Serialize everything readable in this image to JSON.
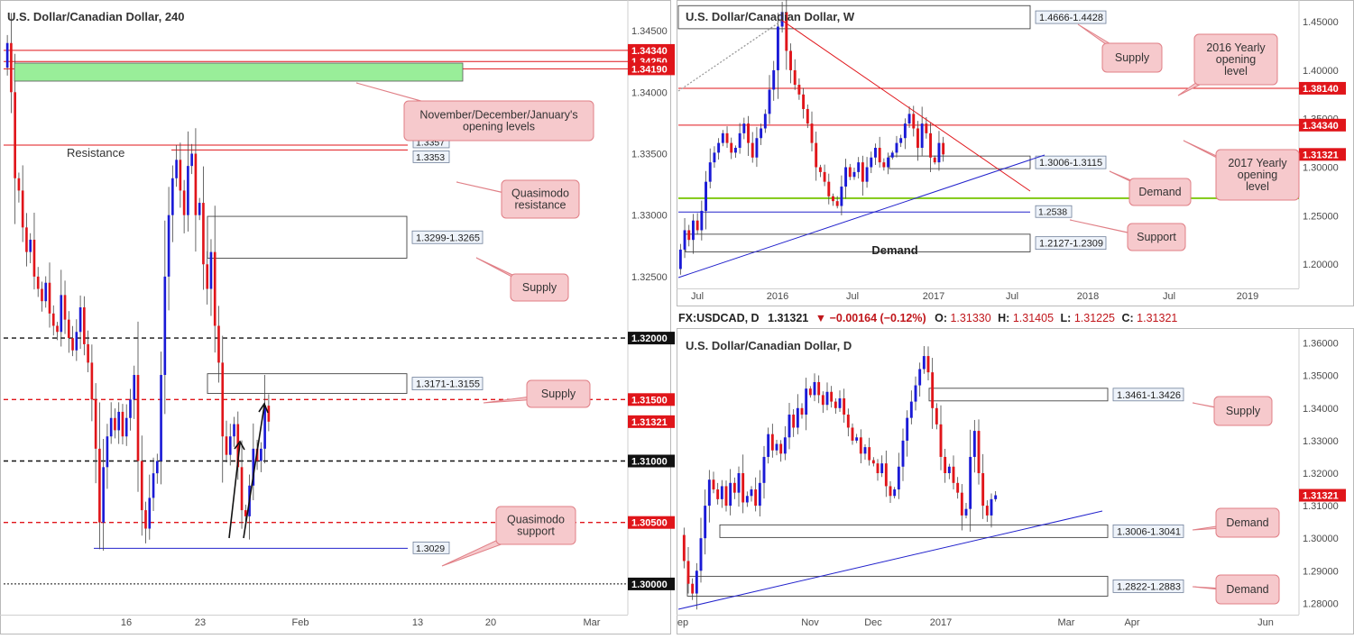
{
  "colors": {
    "up": "#1a1ad6",
    "down": "#e0151a",
    "wick": "#444444",
    "red_level": "#e0151a",
    "black_level": "#111111",
    "blue_level": "#2222cc",
    "green_zone": "#99ee99",
    "green_line": "#88cc22",
    "callout_fill": "#f6c9cc",
    "callout_stroke": "#e07f86",
    "zone_label_fill": "#eef3fa",
    "zone_label_stroke": "#6f7f99",
    "price_tag_dark": "#111111",
    "price_tag_red": "#e0151a",
    "axis_text": "#4a4a4a",
    "frame": "#b9b9b9"
  },
  "chart_data": [
    {
      "id": "h4",
      "type": "candlestick",
      "title": "U.S. Dollar/Canadian Dollar, 240",
      "ylim": [
        1.2975,
        1.3475
      ],
      "x_ticks": [
        "16",
        "23",
        "Feb",
        "13",
        "20",
        "Mar"
      ],
      "y_ticks": [
        "1.34500",
        "1.34000",
        "1.33500",
        "1.33000",
        "1.32500",
        "1.32000",
        "1.31000",
        "1.30500",
        "1.30000"
      ],
      "series": [
        {
          "start": 1.342,
          "values": [
            1.344,
            1.34,
            1.333,
            1.332,
            1.329,
            1.327,
            1.328,
            1.325,
            1.324,
            1.323,
            1.3245,
            1.322,
            1.321,
            1.3205,
            1.3235,
            1.3215,
            1.32,
            1.319,
            1.3205,
            1.3225,
            1.3195,
            1.318,
            1.315,
            1.311,
            1.305,
            1.3095,
            1.312,
            1.3135,
            1.3125,
            1.314,
            1.312,
            1.3135,
            1.315,
            1.317,
            1.31,
            1.306,
            1.3045,
            1.307,
            1.309,
            1.31,
            1.317,
            1.325,
            1.33,
            1.333,
            1.3345,
            1.332,
            1.33,
            1.334,
            1.335,
            1.33,
            1.331,
            1.326,
            1.324,
            1.327,
            1.321,
            1.318,
            1.312,
            1.3105,
            1.312,
            1.313,
            1.3095,
            1.306,
            1.3055,
            1.308,
            1.311,
            1.31,
            1.311,
            1.3145,
            1.3132
          ]
        }
      ],
      "levels": [
        {
          "price": 1.3434,
          "label": "1.34340",
          "color": "red_level",
          "style": "solid"
        },
        {
          "price": 1.3425,
          "label": "1.34250",
          "color": "red_level",
          "style": "solid"
        },
        {
          "price": 1.3419,
          "label": "1.34190",
          "color": "red_level",
          "style": "solid"
        },
        {
          "price": 1.32,
          "label": "1.32000",
          "color": "black_level",
          "style": "dashed"
        },
        {
          "price": 1.315,
          "label": "1.31500",
          "color": "red_level",
          "style": "dashed"
        },
        {
          "price": 1.3132,
          "label": "1.31321",
          "color": "red_level",
          "style": "none"
        },
        {
          "price": 1.31,
          "label": "1.31000",
          "color": "black_level",
          "style": "dashed"
        },
        {
          "price": 1.305,
          "label": "1.30500",
          "color": "red_level",
          "style": "dashed"
        },
        {
          "price": 1.3,
          "label": "1.30000",
          "color": "black_level",
          "style": "dotted"
        }
      ],
      "zones": [
        {
          "label": "1.3299-1.3265",
          "top": 1.3299,
          "bottom": 1.3265
        },
        {
          "label": "1.3171-1.3155",
          "top": 1.3171,
          "bottom": 1.3155
        }
      ],
      "line_labels": [
        {
          "label": "1.3357",
          "price": 1.3357
        },
        {
          "label": "1.3353",
          "price": 1.3353
        },
        {
          "label": "1.3029",
          "price": 1.3029
        }
      ],
      "annotations": [
        "Resistance"
      ],
      "callouts": [
        {
          "text": "November/December/January's opening levels"
        },
        {
          "text": "Quasimodo resistance"
        },
        {
          "text": "Supply"
        },
        {
          "text": "Supply"
        },
        {
          "text": "Quasimodo support"
        }
      ]
    },
    {
      "id": "weekly",
      "type": "candlestick",
      "title": "U.S. Dollar/Canadian Dollar, W",
      "ylim": [
        1.175,
        1.465
      ],
      "x_ticks": [
        "Jul",
        "2016",
        "Jul",
        "2017",
        "Jul",
        "2018",
        "Jul",
        "2019"
      ],
      "y_ticks": [
        "1.45000",
        "1.40000",
        "1.35000",
        "1.30000",
        "1.25000",
        "1.20000"
      ],
      "series": [
        {
          "start": 1.195,
          "values": [
            1.215,
            1.235,
            1.225,
            1.245,
            1.235,
            1.255,
            1.285,
            1.305,
            1.315,
            1.325,
            1.335,
            1.325,
            1.315,
            1.32,
            1.335,
            1.345,
            1.325,
            1.31,
            1.33,
            1.34,
            1.355,
            1.38,
            1.4,
            1.445,
            1.46,
            1.42,
            1.4,
            1.385,
            1.375,
            1.36,
            1.345,
            1.325,
            1.3,
            1.295,
            1.285,
            1.27,
            1.265,
            1.26,
            1.28,
            1.3,
            1.29,
            1.295,
            1.305,
            1.285,
            1.3,
            1.31,
            1.32,
            1.305,
            1.3,
            1.31,
            1.315,
            1.325,
            1.33,
            1.345,
            1.355,
            1.34,
            1.32,
            1.345,
            1.335,
            1.31,
            1.305,
            1.325,
            1.3132
          ]
        }
      ],
      "levels": [
        {
          "price": 1.3814,
          "label": "1.38140",
          "color": "red_level",
          "style": "solid"
        },
        {
          "price": 1.3434,
          "label": "1.34340",
          "color": "red_level",
          "style": "solid"
        },
        {
          "price": 1.3132,
          "label": "1.31321",
          "color": "red_level",
          "style": "none"
        },
        {
          "price": 1.268,
          "label": "",
          "color": "green_line",
          "style": "solid"
        },
        {
          "price": 1.2538,
          "label": "",
          "color": "blue_level",
          "style": "solid"
        }
      ],
      "zones": [
        {
          "label": "1.4666-1.4428",
          "top": 1.4666,
          "bottom": 1.4428
        },
        {
          "label": "1.3006-1.3115",
          "top": 1.3115,
          "bottom": 1.3006
        },
        {
          "label": "1.2127-1.2309",
          "top": 1.2309,
          "bottom": 1.2127
        }
      ],
      "line_labels": [
        {
          "label": "1.2538",
          "price": 1.2538
        }
      ],
      "annotations": [
        "Demand"
      ],
      "callouts": [
        {
          "text": "Supply"
        },
        {
          "text": "2016 Yearly opening level"
        },
        {
          "text": "2017 Yearly opening level"
        },
        {
          "text": "Demand"
        },
        {
          "text": "Support"
        }
      ]
    },
    {
      "id": "daily",
      "type": "candlestick",
      "title": "U.S. Dollar/Canadian Dollar, D",
      "ylim": [
        1.2765,
        1.3635
      ],
      "x_ticks": [
        "ep",
        "Nov",
        "Dec",
        "2017",
        "Mar",
        "Apr",
        "Jun"
      ],
      "y_ticks": [
        "1.36000",
        "1.35000",
        "1.34000",
        "1.33000",
        "1.32000",
        "1.31000",
        "1.30000",
        "1.29000",
        "1.28000"
      ],
      "series": [
        {
          "start": 1.301,
          "values": [
            1.293,
            1.286,
            1.283,
            1.29,
            1.3,
            1.31,
            1.318,
            1.315,
            1.312,
            1.316,
            1.31,
            1.317,
            1.314,
            1.32,
            1.311,
            1.313,
            1.315,
            1.31,
            1.317,
            1.325,
            1.332,
            1.327,
            1.329,
            1.326,
            1.331,
            1.338,
            1.334,
            1.34,
            1.338,
            1.346,
            1.344,
            1.348,
            1.344,
            1.341,
            1.345,
            1.342,
            1.34,
            1.343,
            1.338,
            1.334,
            1.33,
            1.331,
            1.326,
            1.328,
            1.324,
            1.323,
            1.32,
            1.323,
            1.316,
            1.313,
            1.315,
            1.322,
            1.33,
            1.337,
            1.342,
            1.347,
            1.352,
            1.356,
            1.351,
            1.34,
            1.335,
            1.325,
            1.32,
            1.322,
            1.317,
            1.314,
            1.307,
            1.309,
            1.325,
            1.333,
            1.32,
            1.31,
            1.307,
            1.312,
            1.3132
          ]
        }
      ],
      "levels": [
        {
          "price": 1.3132,
          "label": "1.31321",
          "color": "red_level",
          "style": "none"
        }
      ],
      "zones": [
        {
          "label": "1.3461-1.3426",
          "top": 1.3461,
          "bottom": 1.3426
        },
        {
          "label": "1.3006-1.3041",
          "top": 1.3041,
          "bottom": 1.3006
        },
        {
          "label": "1.2822-1.2883",
          "top": 1.2883,
          "bottom": 1.2822
        }
      ],
      "line_labels": [],
      "annotations": [],
      "callouts": [
        {
          "text": "Supply"
        },
        {
          "text": "Demand"
        },
        {
          "text": "Demand"
        }
      ]
    }
  ],
  "header": {
    "symbol": "FX:USDCAD, D",
    "close": "1.31321",
    "change": "▼ −0.00164 (−0.12%)",
    "o_label": "O:",
    "o_value": "1.31330",
    "h_label": "H:",
    "h_value": "1.31405",
    "l_label": "L:",
    "l_value": "1.31225",
    "c_label": "C:",
    "c_value": "1.31321"
  }
}
